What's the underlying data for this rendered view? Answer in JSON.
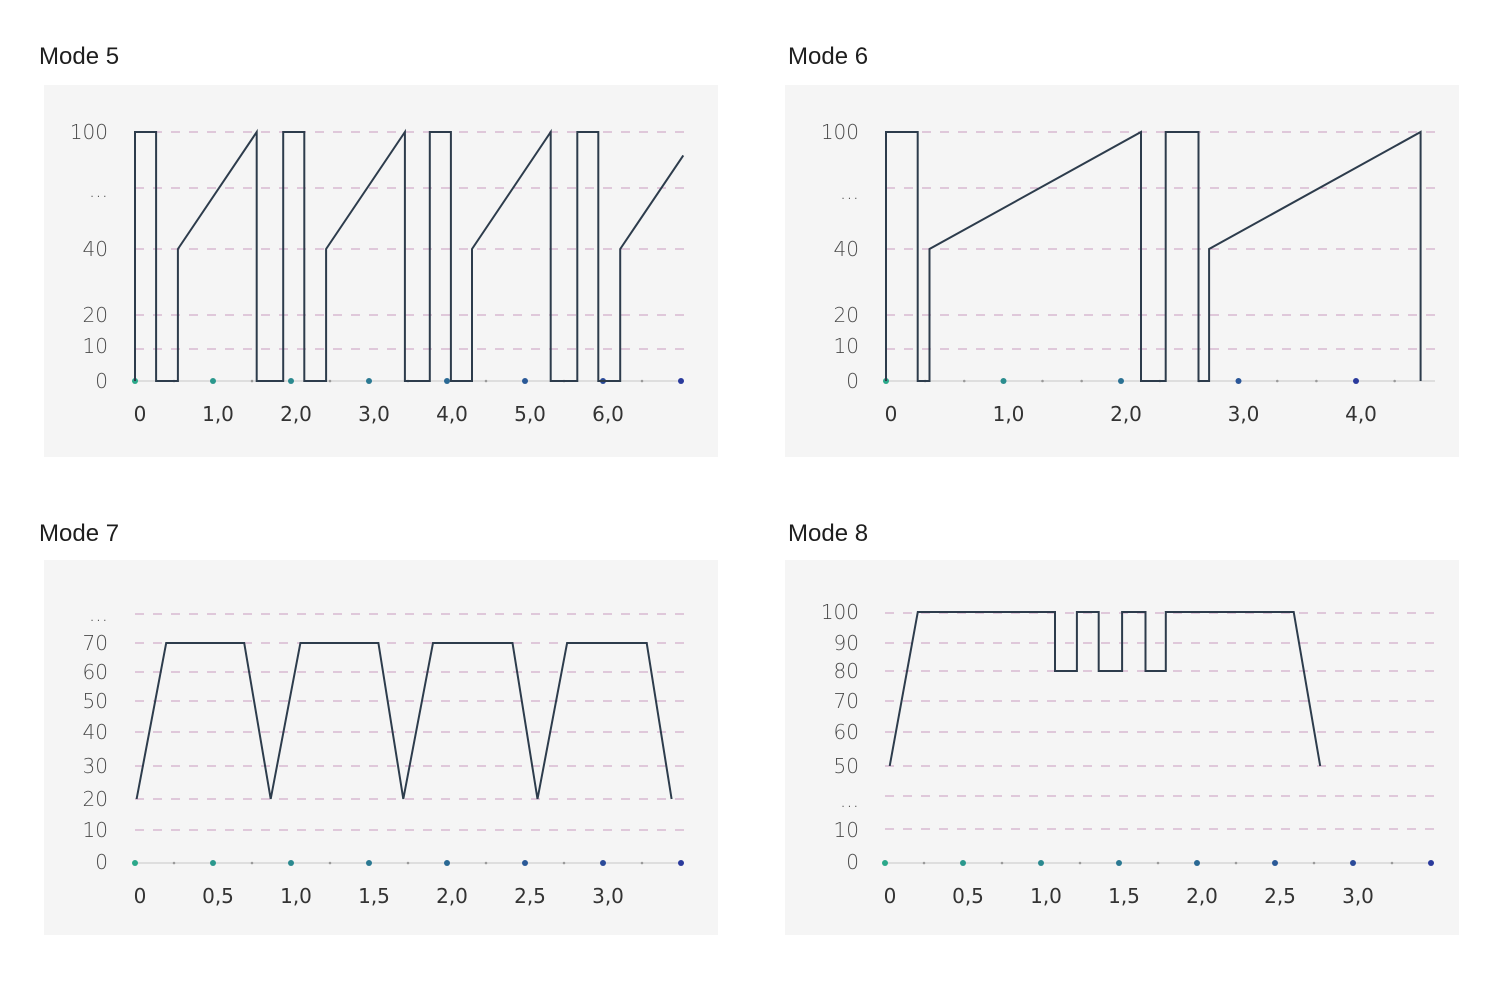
{
  "colors": {
    "line": "#2d3c4c",
    "grid": "#c99bbf",
    "axis": "#c8c8c8",
    "panel_bg": "#f5f5f5",
    "dot_start": "#2ba88a",
    "dot_end": "#2a3a9c",
    "minor_dot": "#9a9a9a",
    "tick_text": "#4a4a4a"
  },
  "chart_data": [
    {
      "type": "line",
      "title": "Mode 5",
      "grid": true,
      "y_ticks": [
        "100",
        "...",
        "40",
        "20",
        "10",
        "0"
      ],
      "x_ticks": [
        {
          "v": 0,
          "label": "0"
        },
        {
          "v": 1,
          "label": "1,0"
        },
        {
          "v": 2,
          "label": "2,0"
        },
        {
          "v": 3,
          "label": "3,0"
        },
        {
          "v": 4,
          "label": "4,0"
        },
        {
          "v": 5,
          "label": "5,0"
        },
        {
          "v": 6,
          "label": "6,0"
        }
      ],
      "xlim": [
        0,
        7
      ],
      "points": [
        [
          0,
          0
        ],
        [
          0,
          100
        ],
        [
          0.27,
          100
        ],
        [
          0.27,
          0
        ],
        [
          0.55,
          0
        ],
        [
          0.55,
          40
        ],
        [
          1.56,
          100
        ],
        [
          1.56,
          0
        ],
        [
          1.9,
          0
        ],
        [
          1.9,
          100
        ],
        [
          2.17,
          100
        ],
        [
          2.17,
          0
        ],
        [
          2.45,
          0
        ],
        [
          2.45,
          40
        ],
        [
          3.46,
          100
        ],
        [
          3.46,
          0
        ],
        [
          3.78,
          0
        ],
        [
          3.78,
          100
        ],
        [
          4.05,
          100
        ],
        [
          4.05,
          0
        ],
        [
          4.32,
          0
        ],
        [
          4.32,
          40
        ],
        [
          5.33,
          100
        ],
        [
          5.33,
          0
        ],
        [
          5.67,
          0
        ],
        [
          5.67,
          100
        ],
        [
          5.94,
          100
        ],
        [
          5.94,
          0
        ],
        [
          6.22,
          0
        ],
        [
          6.22,
          40
        ],
        [
          7.03,
          88
        ]
      ]
    },
    {
      "type": "line",
      "title": "Mode 6",
      "grid": true,
      "y_ticks": [
        "100",
        "...",
        "40",
        "20",
        "10",
        "0"
      ],
      "x_ticks": [
        {
          "v": 0,
          "label": "0"
        },
        {
          "v": 1,
          "label": "1,0"
        },
        {
          "v": 2,
          "label": "2,0"
        },
        {
          "v": 3,
          "label": "3,0"
        },
        {
          "v": 4,
          "label": "4,0"
        }
      ],
      "xlim": [
        0,
        4.65
      ],
      "points": [
        [
          0,
          0
        ],
        [
          0,
          100
        ],
        [
          0.27,
          100
        ],
        [
          0.27,
          0
        ],
        [
          0.37,
          0
        ],
        [
          0.37,
          40
        ],
        [
          2.17,
          100
        ],
        [
          2.17,
          0
        ],
        [
          2.38,
          0
        ],
        [
          2.38,
          100
        ],
        [
          2.66,
          100
        ],
        [
          2.66,
          0
        ],
        [
          2.75,
          0
        ],
        [
          2.75,
          40
        ],
        [
          4.55,
          100
        ],
        [
          4.55,
          0
        ]
      ]
    },
    {
      "type": "line",
      "title": "Mode 7",
      "grid": true,
      "y_ticks": [
        "...",
        "70",
        "60",
        "50",
        "40",
        "30",
        "20",
        "10",
        "0"
      ],
      "x_ticks": [
        {
          "v": 0,
          "label": "0"
        },
        {
          "v": 0.5,
          "label": "0,5"
        },
        {
          "v": 1,
          "label": "1,0"
        },
        {
          "v": 1.5,
          "label": "1,5"
        },
        {
          "v": 2,
          "label": "2,0"
        },
        {
          "v": 2.5,
          "label": "2,5"
        },
        {
          "v": 3,
          "label": "3,0"
        }
      ],
      "xlim": [
        0,
        3.5
      ],
      "points": [
        [
          0.01,
          20
        ],
        [
          0.2,
          70
        ],
        [
          0.7,
          70
        ],
        [
          0.87,
          20
        ],
        [
          1.06,
          70
        ],
        [
          1.56,
          70
        ],
        [
          1.72,
          20
        ],
        [
          1.91,
          70
        ],
        [
          2.42,
          70
        ],
        [
          2.58,
          20
        ],
        [
          2.77,
          70
        ],
        [
          3.28,
          70
        ],
        [
          3.44,
          20
        ]
      ]
    },
    {
      "type": "line",
      "title": "Mode 8",
      "grid": true,
      "y_ticks": [
        "100",
        "90",
        "80",
        "70",
        "60",
        "50",
        "...",
        "10",
        "0"
      ],
      "x_ticks": [
        {
          "v": 0,
          "label": "0"
        },
        {
          "v": 0.5,
          "label": "0,5"
        },
        {
          "v": 1,
          "label": "1,0"
        },
        {
          "v": 1.5,
          "label": "1,5"
        },
        {
          "v": 2,
          "label": "2,0"
        },
        {
          "v": 2.5,
          "label": "2,5"
        },
        {
          "v": 3,
          "label": "3,0"
        }
      ],
      "xlim": [
        0,
        3.5
      ],
      "points": [
        [
          0.03,
          50
        ],
        [
          0.21,
          100
        ],
        [
          1.09,
          100
        ],
        [
          1.09,
          80
        ],
        [
          1.23,
          80
        ],
        [
          1.23,
          100
        ],
        [
          1.37,
          100
        ],
        [
          1.37,
          80
        ],
        [
          1.52,
          80
        ],
        [
          1.52,
          100
        ],
        [
          1.67,
          100
        ],
        [
          1.67,
          80
        ],
        [
          1.8,
          80
        ],
        [
          1.8,
          100
        ],
        [
          2.62,
          100
        ],
        [
          2.79,
          50
        ]
      ]
    }
  ]
}
